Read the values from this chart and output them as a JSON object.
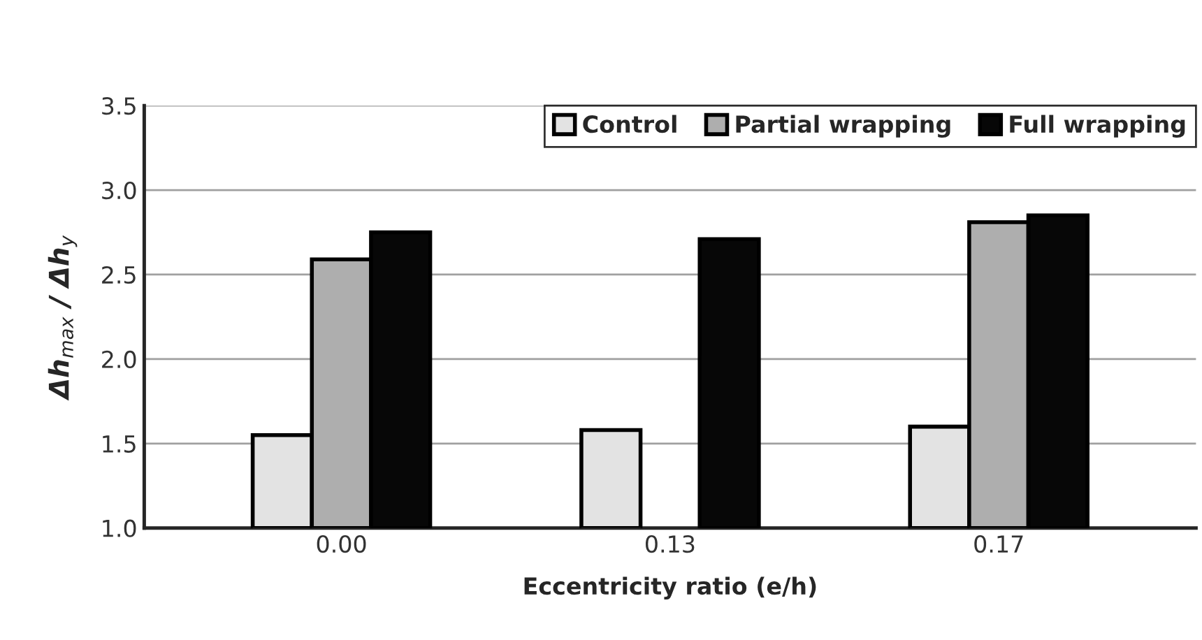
{
  "chart_data": {
    "type": "bar",
    "xlabel": "Eccentricity ratio (e/h)",
    "ylabel": "Δh$_{max}$ / Δh$_{y}$",
    "categories": [
      "0.00",
      "0.13",
      "0.17"
    ],
    "series": [
      {
        "name": "Control",
        "color": "#e3e3e3",
        "values": [
          1.55,
          1.58,
          1.6
        ]
      },
      {
        "name": "Partial wrapping",
        "color": "#aeaeae",
        "values": [
          2.59,
          null,
          2.81
        ]
      },
      {
        "name": "Full wrapping",
        "color": "#070707",
        "values": [
          2.75,
          2.71,
          2.85
        ]
      }
    ],
    "ylim": [
      1.0,
      3.5
    ],
    "yticks": [
      {
        "value": 1.0,
        "label": "1.0"
      },
      {
        "value": 1.5,
        "label": "1.5"
      },
      {
        "value": 2.0,
        "label": "2.0"
      },
      {
        "value": 2.5,
        "label": "2.5"
      },
      {
        "value": 3.0,
        "label": "3.0"
      },
      {
        "value": 3.5,
        "label": "3.5"
      }
    ],
    "grid": "y",
    "legend": "top right"
  }
}
